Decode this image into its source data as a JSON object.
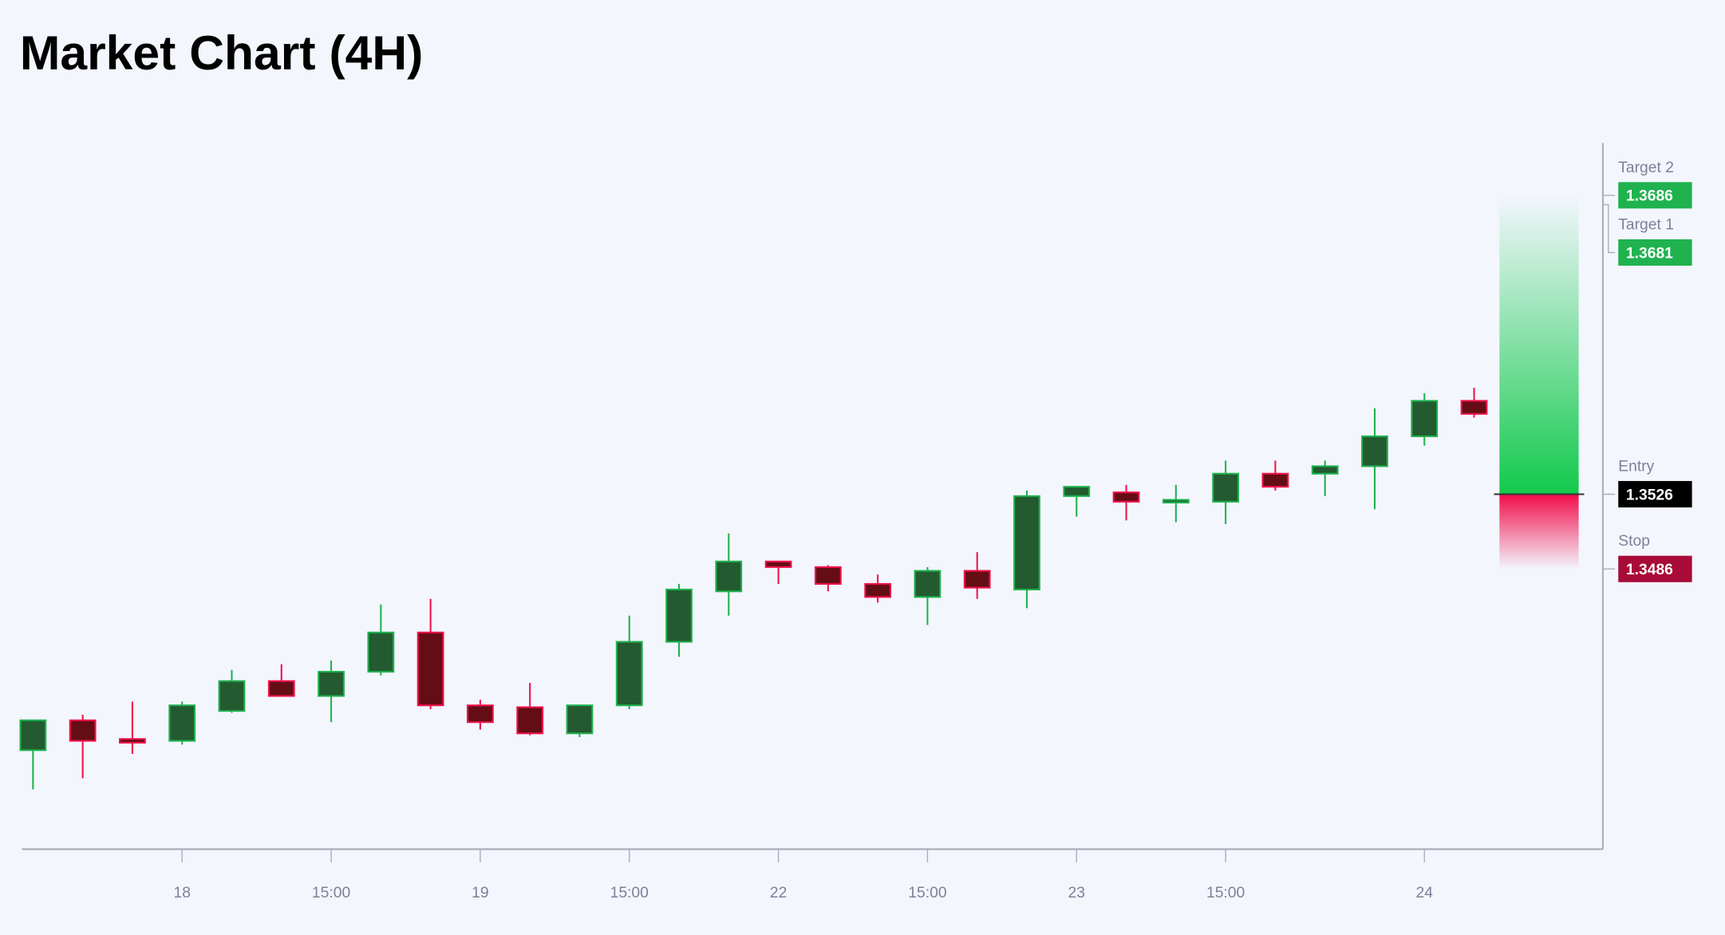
{
  "chart_data": {
    "type": "candlestick",
    "title": "Market Chart (4H)",
    "ylim": [
      1.3336,
      1.3714
    ],
    "grid": false,
    "colors": {
      "up_body": "#235a30",
      "up_border": "#1fb24f",
      "down_body": "#650d14",
      "down_border": "#f0124c",
      "background": "#f3f6fd",
      "axis": "#a9acb8"
    },
    "candles": [
      {
        "o": 1.3389,
        "h": 1.3405,
        "l": 1.3368,
        "c": 1.3405
      },
      {
        "o": 1.3405,
        "h": 1.3408,
        "l": 1.3374,
        "c": 1.3394
      },
      {
        "o": 1.3395,
        "h": 1.3415,
        "l": 1.3387,
        "c": 1.3393
      },
      {
        "o": 1.3394,
        "h": 1.3415,
        "l": 1.3392,
        "c": 1.3413
      },
      {
        "o": 1.341,
        "h": 1.3432,
        "l": 1.3409,
        "c": 1.3426
      },
      {
        "o": 1.3426,
        "h": 1.3435,
        "l": 1.3418,
        "c": 1.3418
      },
      {
        "o": 1.3418,
        "h": 1.3437,
        "l": 1.3404,
        "c": 1.3431
      },
      {
        "o": 1.3431,
        "h": 1.3467,
        "l": 1.3429,
        "c": 1.3452
      },
      {
        "o": 1.3452,
        "h": 1.347,
        "l": 1.3411,
        "c": 1.3413
      },
      {
        "o": 1.3413,
        "h": 1.3416,
        "l": 1.34,
        "c": 1.3404
      },
      {
        "o": 1.3412,
        "h": 1.3425,
        "l": 1.3397,
        "c": 1.3398
      },
      {
        "o": 1.3398,
        "h": 1.3413,
        "l": 1.3396,
        "c": 1.3413
      },
      {
        "o": 1.3413,
        "h": 1.3461,
        "l": 1.3411,
        "c": 1.3447
      },
      {
        "o": 1.3447,
        "h": 1.3478,
        "l": 1.3439,
        "c": 1.3475
      },
      {
        "o": 1.3474,
        "h": 1.3505,
        "l": 1.3461,
        "c": 1.349
      },
      {
        "o": 1.349,
        "h": 1.349,
        "l": 1.3478,
        "c": 1.3487
      },
      {
        "o": 1.3487,
        "h": 1.3488,
        "l": 1.3474,
        "c": 1.3478
      },
      {
        "o": 1.3478,
        "h": 1.3483,
        "l": 1.3468,
        "c": 1.3471
      },
      {
        "o": 1.3471,
        "h": 1.3487,
        "l": 1.3456,
        "c": 1.3485
      },
      {
        "o": 1.3485,
        "h": 1.3495,
        "l": 1.347,
        "c": 1.3476
      },
      {
        "o": 1.3475,
        "h": 1.3528,
        "l": 1.3465,
        "c": 1.3525
      },
      {
        "o": 1.3525,
        "h": 1.353,
        "l": 1.3514,
        "c": 1.353
      },
      {
        "o": 1.3527,
        "h": 1.3531,
        "l": 1.3512,
        "c": 1.3522
      },
      {
        "o": 1.3522,
        "h": 1.3531,
        "l": 1.3511,
        "c": 1.3523
      },
      {
        "o": 1.3522,
        "h": 1.3544,
        "l": 1.351,
        "c": 1.3537
      },
      {
        "o": 1.3537,
        "h": 1.3544,
        "l": 1.3528,
        "c": 1.353
      },
      {
        "o": 1.3537,
        "h": 1.3544,
        "l": 1.3525,
        "c": 1.3541
      },
      {
        "o": 1.3541,
        "h": 1.3572,
        "l": 1.3518,
        "c": 1.3557
      },
      {
        "o": 1.3557,
        "h": 1.358,
        "l": 1.3552,
        "c": 1.3576
      },
      {
        "o": 1.3576,
        "h": 1.3583,
        "l": 1.3567,
        "c": 1.3569
      }
    ],
    "x_ticks": [
      {
        "index": 3,
        "label": "18"
      },
      {
        "index": 6,
        "label": "15:00"
      },
      {
        "index": 9,
        "label": "19"
      },
      {
        "index": 12,
        "label": "15:00"
      },
      {
        "index": 15,
        "label": "22"
      },
      {
        "index": 18,
        "label": "15:00"
      },
      {
        "index": 21,
        "label": "23"
      },
      {
        "index": 24,
        "label": "15:00"
      },
      {
        "index": 28,
        "label": "24"
      }
    ],
    "levels": [
      {
        "name": "Target 2",
        "value": "1.3686",
        "price": 1.3686,
        "color": "#1fb24f"
      },
      {
        "name": "Target 1",
        "value": "1.3681",
        "price": 1.3681,
        "color": "#1fb24f"
      },
      {
        "name": "Entry",
        "value": "1.3526",
        "price": 1.3526,
        "color": "#000000"
      },
      {
        "name": "Stop",
        "value": "1.3486",
        "price": 1.3486,
        "color": "#a80b38"
      }
    ]
  }
}
